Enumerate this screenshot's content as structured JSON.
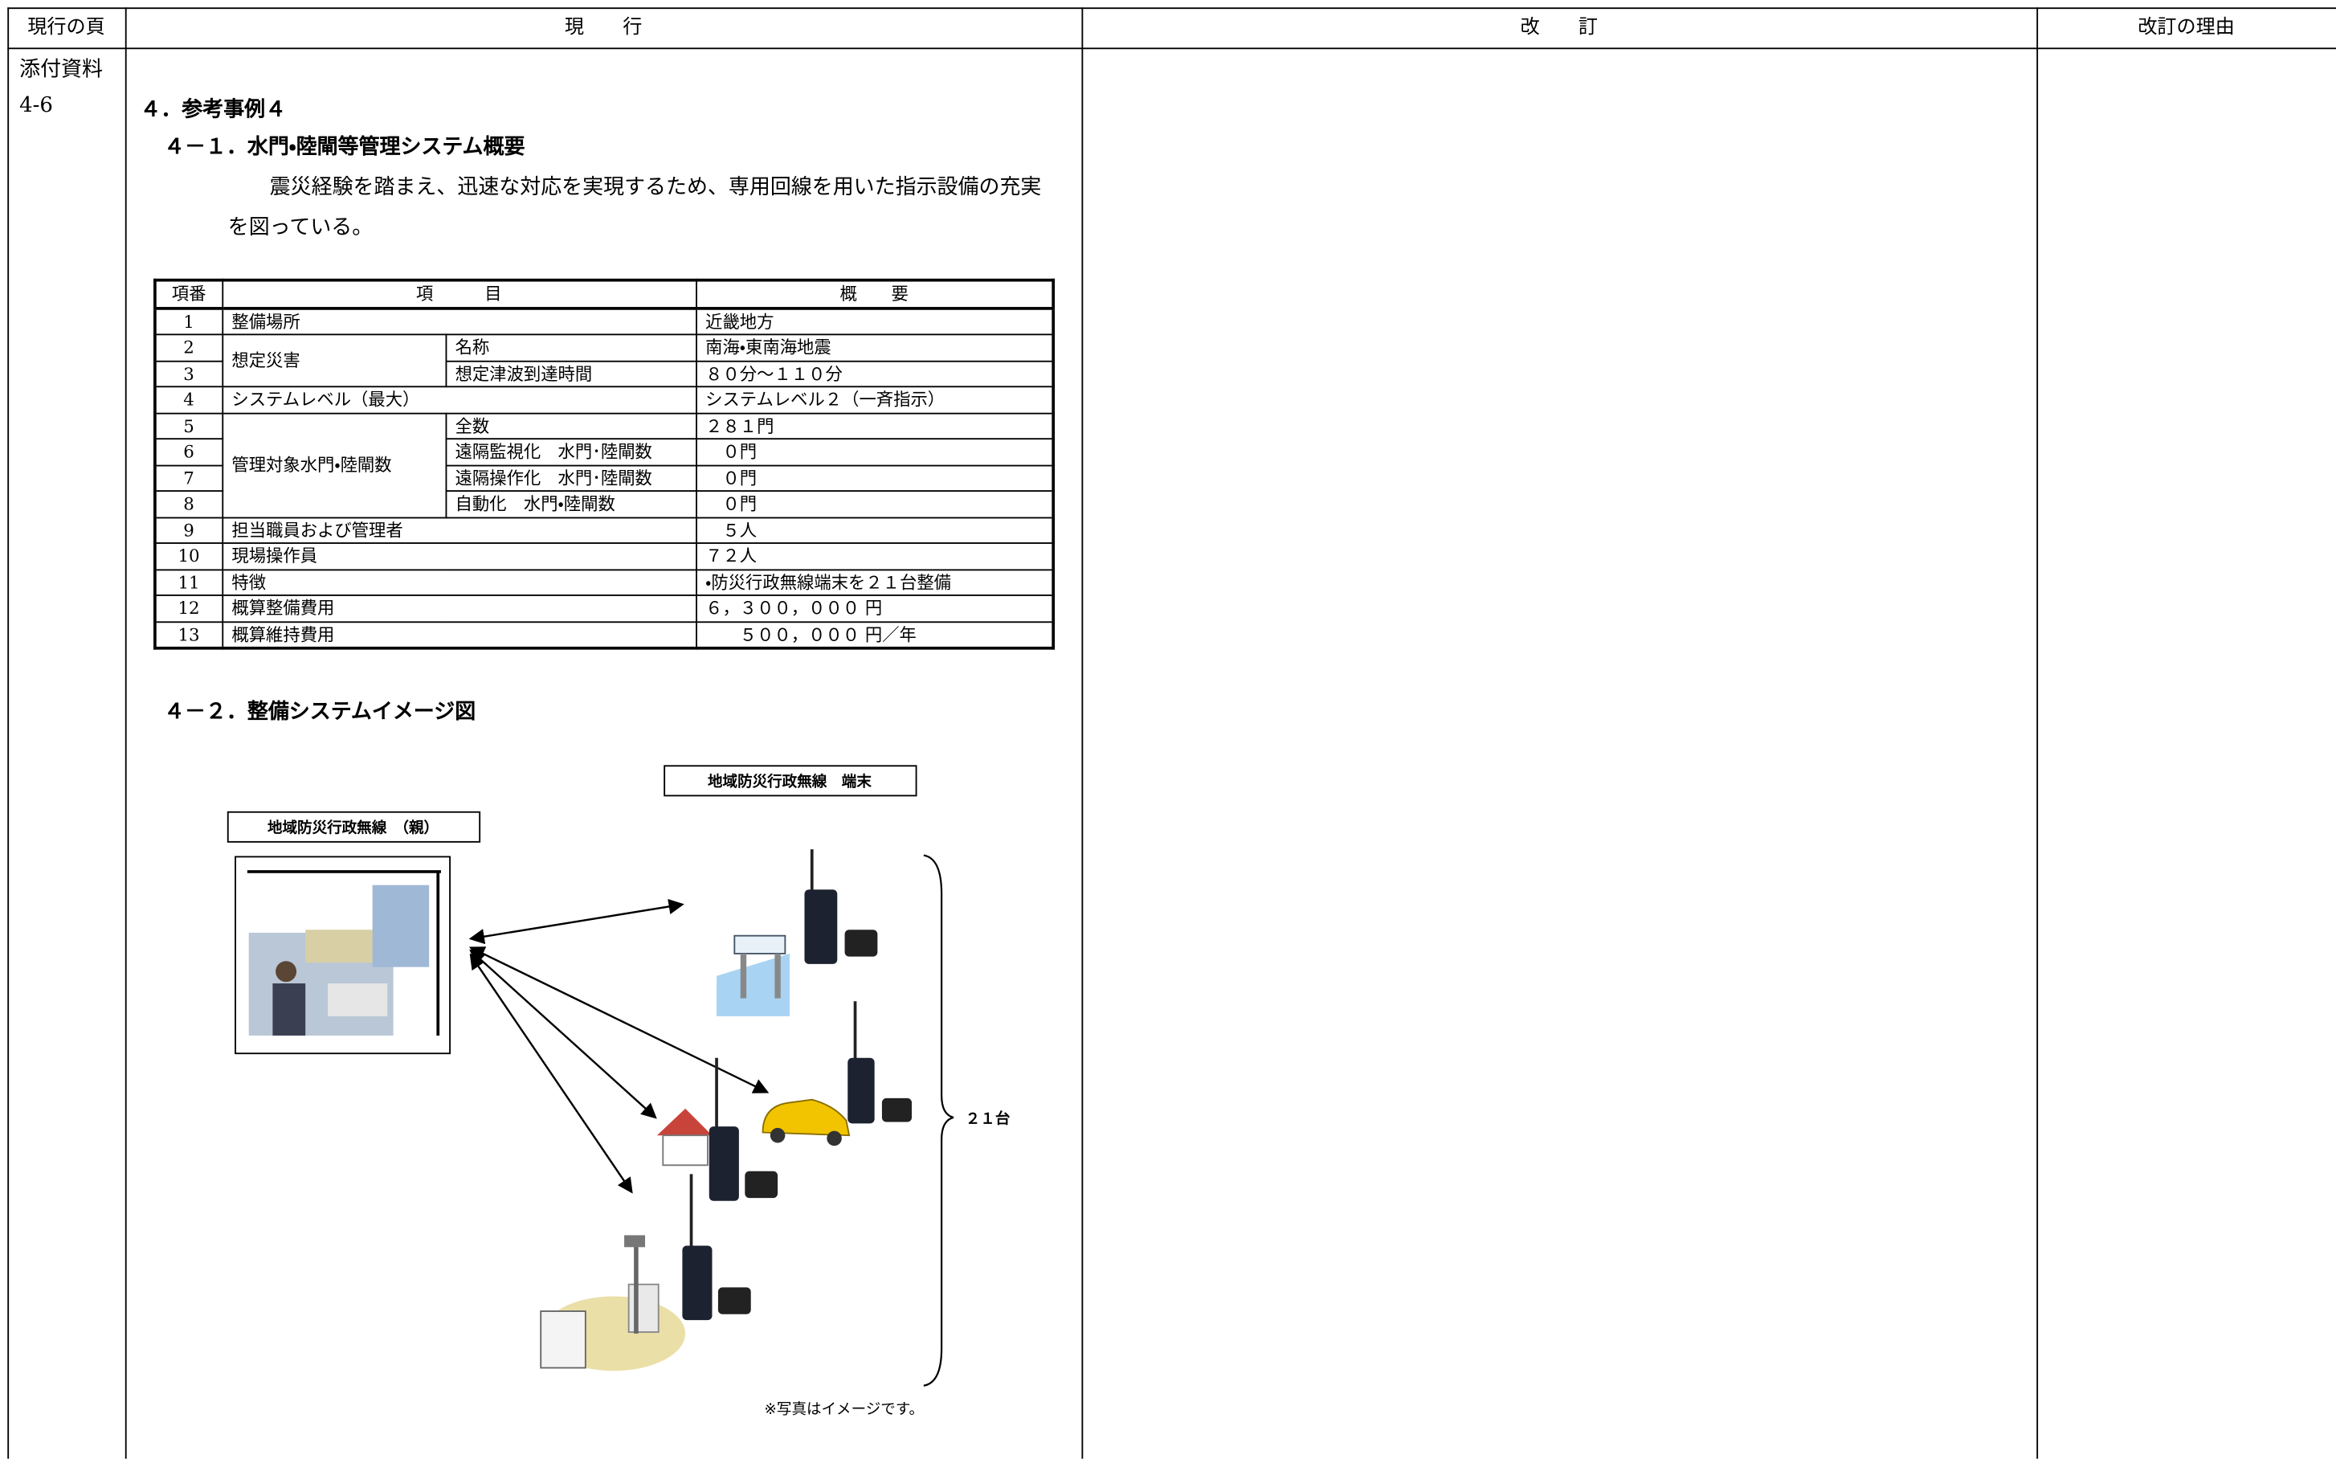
{
  "header": {
    "columns": [
      "現行の頁",
      "現　　行",
      "改　　訂",
      "改訂の理由"
    ]
  },
  "page_ref": {
    "label": "添付資料",
    "number": "4-6"
  },
  "section": {
    "title": "４．参考事例４",
    "subsection_1": "４－１．水門・陸閘等管理システム概要",
    "paragraph": "震災経験を踏まえ、迅速な対応を実現するため、専用回線を用いた指示設備の充実を図っている。",
    "subsection_2": "４－２．整備システムイメージ図"
  },
  "table": {
    "columns": [
      "項番",
      "項　　　目",
      "概　　要"
    ],
    "rows": [
      {
        "no": "1",
        "item": "整備場所",
        "summary": "近畿地方"
      },
      {
        "item": "想定災害",
        "rows": [
          {
            "no": "2",
            "sub": "名称",
            "summary": "南海・東南海地震"
          },
          {
            "no": "3",
            "sub": "想定津波到達時間",
            "summary": "８０分～１１０分"
          }
        ]
      },
      {
        "no": "4",
        "item": "システムレベル（最大）",
        "summary": "システムレベル２（一斉指示）"
      },
      {
        "item": "管理対象水門・陸閘数",
        "rows": [
          {
            "no": "5",
            "sub": "全数",
            "summary": "２８１門"
          },
          {
            "no": "6",
            "sub": "遠隔監視化　水門･陸閘数",
            "summary": "　０門"
          },
          {
            "no": "7",
            "sub": "遠隔操作化　水門･陸閘数",
            "summary": "　０門"
          },
          {
            "no": "8",
            "sub": "自動化　水門・陸閘数",
            "summary": "　０門"
          }
        ]
      },
      {
        "no": "9",
        "item": "担当職員および管理者",
        "summary": "　５人"
      },
      {
        "no": "10",
        "item": "現場操作員",
        "summary": "７２人"
      },
      {
        "no": "11",
        "item": "特徴",
        "summary": "・防災行政無線端末を２１台整備"
      },
      {
        "no": "12",
        "item": "概算整備費用",
        "summary": "６，３００，０００ 円"
      },
      {
        "no": "13",
        "item": "概算維持費用",
        "summary": "　　５００，０００ 円／年"
      }
    ]
  },
  "diagram": {
    "base_label": "地域防災行政無線　（親）",
    "terminal_label": "地域防災行政無線　端末",
    "count_label": "２１台",
    "note": "※写真はイメージです。"
  }
}
